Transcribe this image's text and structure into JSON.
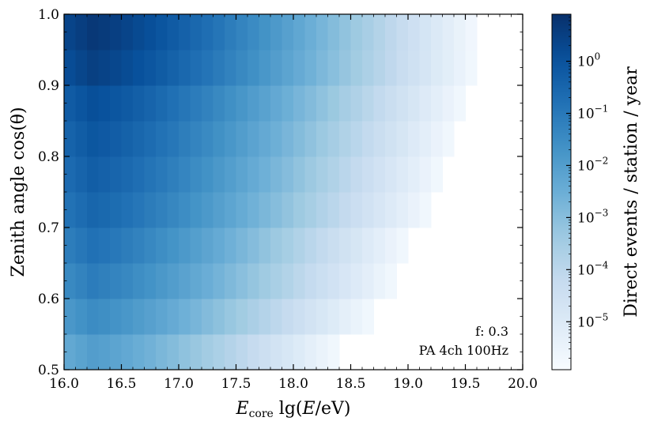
{
  "chart_data": {
    "type": "heatmap",
    "xlabel_main": "E",
    "xlabel_sub": "core",
    "xlabel_rest_pre": " lg(",
    "xlabel_italic": "E",
    "xlabel_rest_post": "/eV)",
    "ylabel": "Zenith angle cos(θ)",
    "colorbar_label": "Direct events / station / year",
    "colorbar_ticks": [
      {
        "label_base": "10",
        "label_exp": "0",
        "value": 1
      },
      {
        "label_base": "10",
        "label_exp": "−1",
        "value": 0.1
      },
      {
        "label_base": "10",
        "label_exp": "−2",
        "value": 0.01
      },
      {
        "label_base": "10",
        "label_exp": "−3",
        "value": 0.001
      },
      {
        "label_base": "10",
        "label_exp": "−4",
        "value": 0.0001
      },
      {
        "label_base": "10",
        "label_exp": "−5",
        "value": 1e-05
      }
    ],
    "colorbar_range": [
      1.2e-06,
      8
    ],
    "colormap": [
      "#f7fbff",
      "#deebf7",
      "#c6dbef",
      "#9ecae1",
      "#6baed6",
      "#4292c6",
      "#2171b5",
      "#08519c",
      "#08306b"
    ],
    "xlim": [
      16.0,
      20.0
    ],
    "ylim": [
      0.5,
      1.0
    ],
    "xticks": [
      "16.0",
      "16.5",
      "17.0",
      "17.5",
      "18.0",
      "18.5",
      "19.0",
      "19.5",
      "20.0"
    ],
    "yticks": [
      "0.5",
      "0.6",
      "0.7",
      "0.8",
      "0.9",
      "1.0"
    ],
    "x_bin_width": 0.1,
    "y_bin_width": 0.05,
    "rows": [
      {
        "y0": 0.5,
        "x_max": 18.4,
        "peak_log": -2.0
      },
      {
        "y0": 0.55,
        "x_max": 18.7,
        "peak_log": -1.5
      },
      {
        "y0": 0.6,
        "x_max": 18.9,
        "peak_log": -1.1
      },
      {
        "y0": 0.65,
        "x_max": 19.0,
        "peak_log": -0.8
      },
      {
        "y0": 0.7,
        "x_max": 19.2,
        "peak_log": -0.5
      },
      {
        "y0": 0.75,
        "x_max": 19.3,
        "peak_log": -0.3
      },
      {
        "y0": 0.8,
        "x_max": 19.4,
        "peak_log": -0.1
      },
      {
        "y0": 0.85,
        "x_max": 19.5,
        "peak_log": 0.1
      },
      {
        "y0": 0.9,
        "x_max": 19.6,
        "peak_log": 0.5
      },
      {
        "y0": 0.95,
        "x_max": 19.6,
        "peak_log": 0.7
      }
    ],
    "peak_x": 16.25,
    "bottom_log": -5.8,
    "annotations": [
      "f: 0.3",
      "PA 4ch 100Hz"
    ]
  }
}
